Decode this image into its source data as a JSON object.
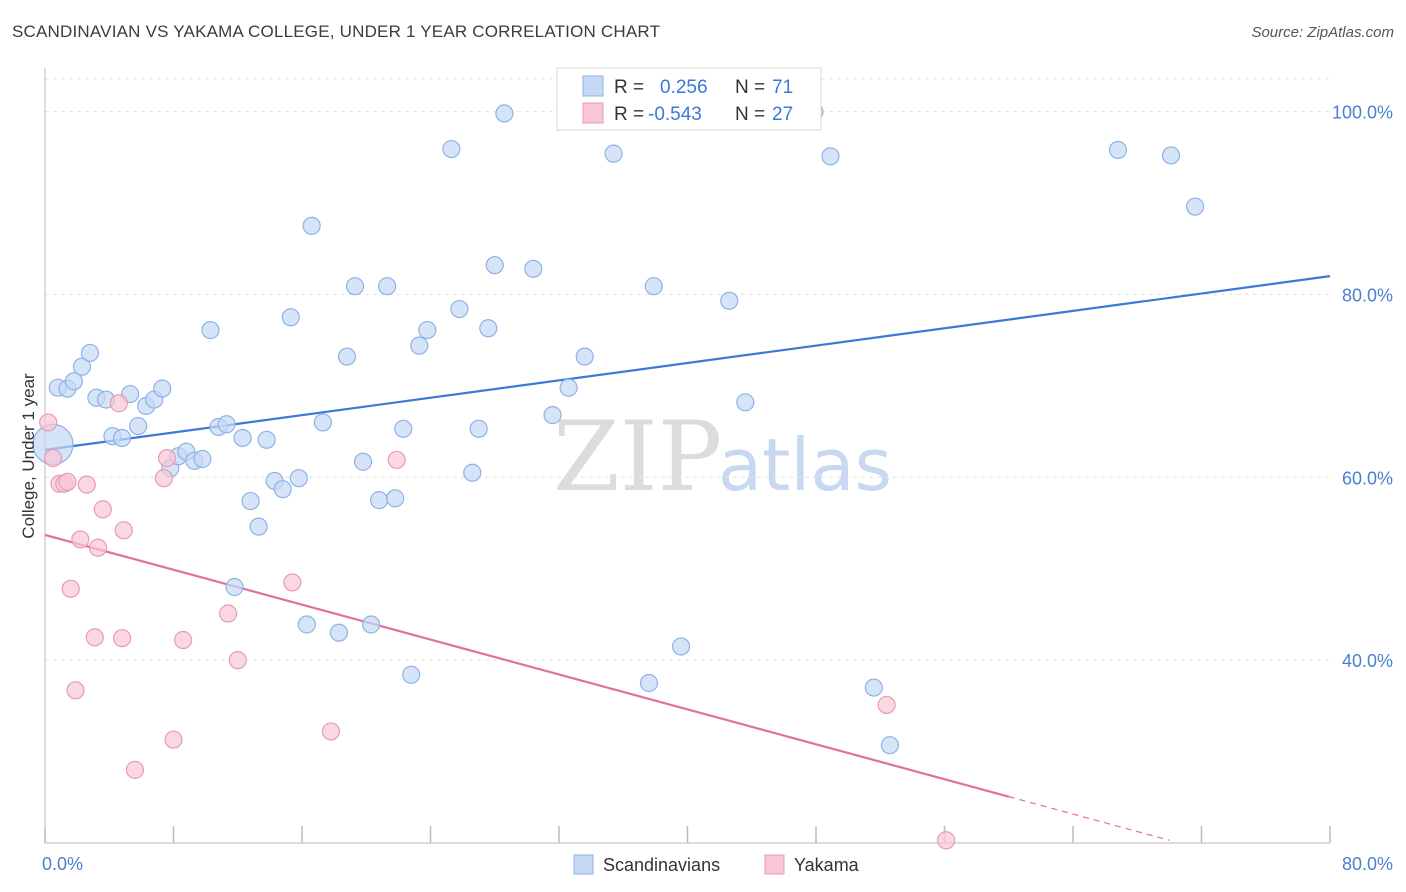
{
  "title": "SCANDINAVIAN VS YAKAMA COLLEGE, UNDER 1 YEAR CORRELATION CHART",
  "source": "Source: ZipAtlas.com",
  "colors": {
    "blue": "#3b78d8",
    "blue_fill": "#c5d9f5",
    "pink": "#e0709a",
    "pink_fill": "#f8c6d6",
    "grid": "#e2e2e2"
  },
  "legend": {
    "rows": [
      {
        "r_label": "R =",
        "r_value": "0.256",
        "n_label": "N =",
        "n_value": "71"
      },
      {
        "r_label": "R =",
        "r_value": "-0.543",
        "n_label": "N =",
        "n_value": "27"
      }
    ]
  },
  "bottom_legend": [
    "Scandinavians",
    "Yakama"
  ],
  "watermark": {
    "zip": "ZIP",
    "atlas": "atlas"
  },
  "chart_data": {
    "type": "scatter",
    "xlabel": "",
    "ylabel": "College, Under 1 year",
    "xlim": [
      0,
      80
    ],
    "ylim": [
      20,
      104
    ],
    "x_tick_labels": [
      "0.0%",
      "80.0%"
    ],
    "y_ticks": [
      40,
      60,
      80,
      100
    ],
    "y_tick_labels": [
      "40.0%",
      "60.0%",
      "80.0%",
      "100.0%"
    ],
    "series": [
      {
        "name": "Scandinavians",
        "trend": {
          "x0": 0,
          "y0": 63.0,
          "x1": 80,
          "y1": 82.0,
          "dash_from": null
        },
        "points": [
          [
            0.5,
            63.6,
            "big"
          ],
          [
            0.8,
            69.8
          ],
          [
            1.4,
            69.7
          ],
          [
            1.8,
            70.5
          ],
          [
            2.3,
            72.1
          ],
          [
            2.8,
            73.6
          ],
          [
            3.2,
            68.7
          ],
          [
            3.8,
            68.5
          ],
          [
            4.2,
            64.5
          ],
          [
            4.8,
            64.3
          ],
          [
            5.3,
            69.1
          ],
          [
            5.8,
            65.6
          ],
          [
            6.3,
            67.8
          ],
          [
            6.8,
            68.5
          ],
          [
            7.3,
            69.7
          ],
          [
            7.8,
            61.0
          ],
          [
            8.3,
            62.3
          ],
          [
            8.8,
            62.8
          ],
          [
            9.3,
            61.8
          ],
          [
            9.8,
            62.0
          ],
          [
            10.3,
            76.1
          ],
          [
            10.8,
            65.5
          ],
          [
            11.3,
            65.8
          ],
          [
            11.8,
            48.0
          ],
          [
            12.3,
            64.3
          ],
          [
            12.8,
            57.4
          ],
          [
            13.3,
            54.6
          ],
          [
            13.8,
            64.1
          ],
          [
            14.3,
            59.6
          ],
          [
            14.8,
            58.7
          ],
          [
            15.3,
            77.5
          ],
          [
            15.8,
            59.9
          ],
          [
            16.3,
            43.9
          ],
          [
            16.6,
            87.5
          ],
          [
            17.3,
            66.0
          ],
          [
            18.3,
            43.0
          ],
          [
            18.8,
            73.2
          ],
          [
            19.3,
            80.9
          ],
          [
            19.8,
            61.7
          ],
          [
            20.3,
            43.9
          ],
          [
            20.8,
            57.5
          ],
          [
            21.3,
            80.9
          ],
          [
            21.8,
            57.7
          ],
          [
            22.3,
            65.3
          ],
          [
            22.8,
            38.4
          ],
          [
            23.3,
            74.4
          ],
          [
            23.8,
            76.1
          ],
          [
            25.3,
            95.9
          ],
          [
            25.8,
            78.4
          ],
          [
            26.6,
            60.5
          ],
          [
            27.0,
            65.3
          ],
          [
            27.6,
            76.3
          ],
          [
            28.0,
            83.2
          ],
          [
            28.6,
            99.8
          ],
          [
            30.4,
            82.8
          ],
          [
            31.6,
            66.8
          ],
          [
            32.6,
            69.8
          ],
          [
            33.6,
            73.2
          ],
          [
            35.4,
            95.4
          ],
          [
            37.6,
            37.5
          ],
          [
            37.9,
            80.9
          ],
          [
            39.6,
            41.5
          ],
          [
            42.6,
            79.3
          ],
          [
            43.6,
            68.2
          ],
          [
            47.9,
            100.0
          ],
          [
            48.9,
            95.1
          ],
          [
            51.6,
            37.0
          ],
          [
            52.6,
            30.7
          ],
          [
            66.8,
            95.8
          ],
          [
            70.1,
            95.2
          ],
          [
            71.6,
            89.6
          ]
        ]
      },
      {
        "name": "Yakama",
        "trend": {
          "x0": 0,
          "y0": 53.7,
          "x1": 70,
          "y1": 20.3,
          "dash_from": 60
        },
        "points": [
          [
            0.2,
            66.0
          ],
          [
            0.5,
            62.1
          ],
          [
            0.9,
            59.3
          ],
          [
            1.2,
            59.3
          ],
          [
            1.4,
            59.5
          ],
          [
            1.6,
            47.8
          ],
          [
            1.9,
            36.7
          ],
          [
            2.2,
            53.2
          ],
          [
            2.6,
            59.2
          ],
          [
            3.1,
            42.5
          ],
          [
            3.3,
            52.3
          ],
          [
            3.6,
            56.5
          ],
          [
            4.6,
            68.1
          ],
          [
            4.8,
            42.4
          ],
          [
            4.9,
            54.2
          ],
          [
            5.6,
            28.0
          ],
          [
            7.4,
            59.9
          ],
          [
            7.6,
            62.1
          ],
          [
            8.0,
            31.3
          ],
          [
            8.6,
            42.2
          ],
          [
            11.4,
            45.1
          ],
          [
            12.0,
            40.0
          ],
          [
            15.4,
            48.5
          ],
          [
            17.8,
            32.2
          ],
          [
            21.9,
            61.9
          ],
          [
            52.4,
            35.1
          ],
          [
            56.1,
            20.3
          ]
        ]
      }
    ]
  }
}
